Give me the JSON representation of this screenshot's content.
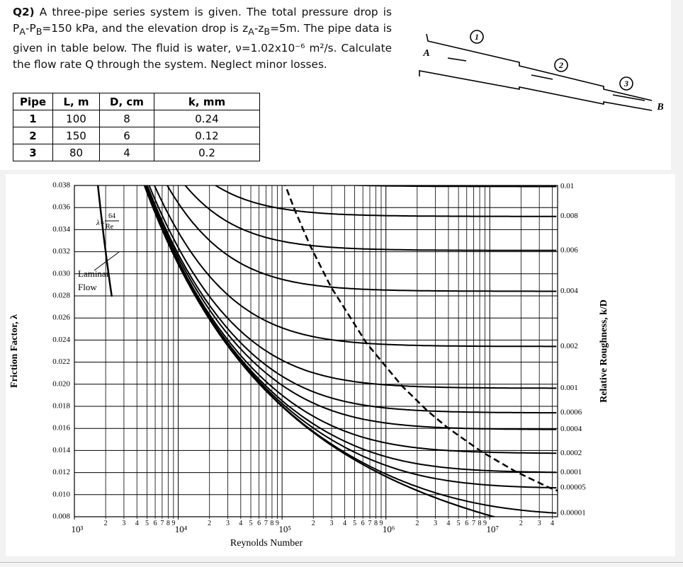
{
  "question": [
    "Q2)",
    " A three-pipe series system is given. The total pressure drop is P",
    "A",
    "-P",
    "B",
    "=150 kPa, and the elevation drop is z",
    "A",
    "-z",
    "B",
    "=5m. The pipe data is given in table below. The fluid is water, ν=1.02x10⁻⁶ m²/s. Calculate the flow rate Q through the system. Neglect minor losses."
  ],
  "table": {
    "header": [
      "Pipe",
      "L, m",
      "D, cm",
      "k, mm"
    ],
    "rows": [
      [
        1,
        100,
        8,
        0.24
      ],
      [
        2,
        150,
        6,
        0.12
      ],
      [
        3,
        80,
        4,
        0.2
      ]
    ]
  },
  "diagram": {
    "labels": [
      "1",
      "2",
      "3"
    ],
    "point_a": "A",
    "point_b": "B"
  },
  "chart_data": {
    "type": "moody",
    "xlabel": "Reynolds Number",
    "ylabel": "Friction Factor, λ",
    "y2label": "Relative Roughness, k/D",
    "log_x": true,
    "xlim": [
      1000,
      45000000
    ],
    "ylim": [
      0.008,
      0.038
    ],
    "xticks": [
      {
        "value": 1000,
        "label": "10³"
      },
      {
        "value": 10000,
        "label": "10⁴"
      },
      {
        "value": 100000,
        "label": "10⁵"
      },
      {
        "value": 1000000,
        "label": "10⁶"
      },
      {
        "value": 10000000,
        "label": "10⁷"
      }
    ],
    "minor_xticks": [
      {
        "value": 2000,
        "label": "2"
      },
      {
        "value": 3000,
        "label": "3"
      },
      {
        "value": 4000,
        "label": "4"
      },
      {
        "value": 5000,
        "label": "5"
      },
      {
        "value": 6000,
        "label": "6"
      },
      {
        "value": 7000,
        "label": "7"
      },
      {
        "value": 8000,
        "label": "8"
      },
      {
        "value": 9000,
        "label": "9"
      },
      {
        "value": 20000,
        "label": "2"
      },
      {
        "value": 30000,
        "label": "3"
      },
      {
        "value": 40000,
        "label": "4"
      },
      {
        "value": 50000,
        "label": "5"
      },
      {
        "value": 60000,
        "label": "6"
      },
      {
        "value": 70000,
        "label": "7"
      },
      {
        "value": 80000,
        "label": "8"
      },
      {
        "value": 90000,
        "label": "9"
      },
      {
        "value": 200000,
        "label": "2"
      },
      {
        "value": 300000,
        "label": "3"
      },
      {
        "value": 400000,
        "label": "4"
      },
      {
        "value": 500000,
        "label": "5"
      },
      {
        "value": 600000,
        "label": "6"
      },
      {
        "value": 700000,
        "label": "7"
      },
      {
        "value": 800000,
        "label": "8"
      },
      {
        "value": 900000,
        "label": "9"
      },
      {
        "value": 2000000,
        "label": "2"
      },
      {
        "value": 3000000,
        "label": "3"
      },
      {
        "value": 4000000,
        "label": "4"
      },
      {
        "value": 5000000,
        "label": "5"
      },
      {
        "value": 6000000,
        "label": "6"
      },
      {
        "value": 7000000,
        "label": "7"
      },
      {
        "value": 8000000,
        "label": "8"
      },
      {
        "value": 9000000,
        "label": "9"
      },
      {
        "value": 20000000,
        "label": "2"
      },
      {
        "value": 30000000,
        "label": "3"
      },
      {
        "value": 40000000,
        "label": "4"
      }
    ],
    "yticks": [
      0.038,
      0.036,
      0.034,
      0.032,
      {
        "value": 0.03,
        "label": "0.030"
      },
      0.028,
      0.026,
      0.024,
      0.022,
      {
        "value": 0.02,
        "label": "0.020"
      },
      0.018,
      0.016,
      0.014,
      0.012,
      {
        "value": 0.01,
        "label": "0.010"
      },
      0.008
    ],
    "roughness": [
      0.01,
      0.008,
      0.006,
      0.004,
      0.002,
      0.001,
      0.0006,
      0.0004,
      0.0002,
      0.0001,
      5e-05,
      1e-05
    ],
    "annotations": {
      "laminar_formula": "λ=",
      "laminar_num": "64",
      "laminar_den": "Re",
      "laminar_label_1": "Laminar",
      "laminar_label_2": "Flow"
    },
    "grid": true
  }
}
